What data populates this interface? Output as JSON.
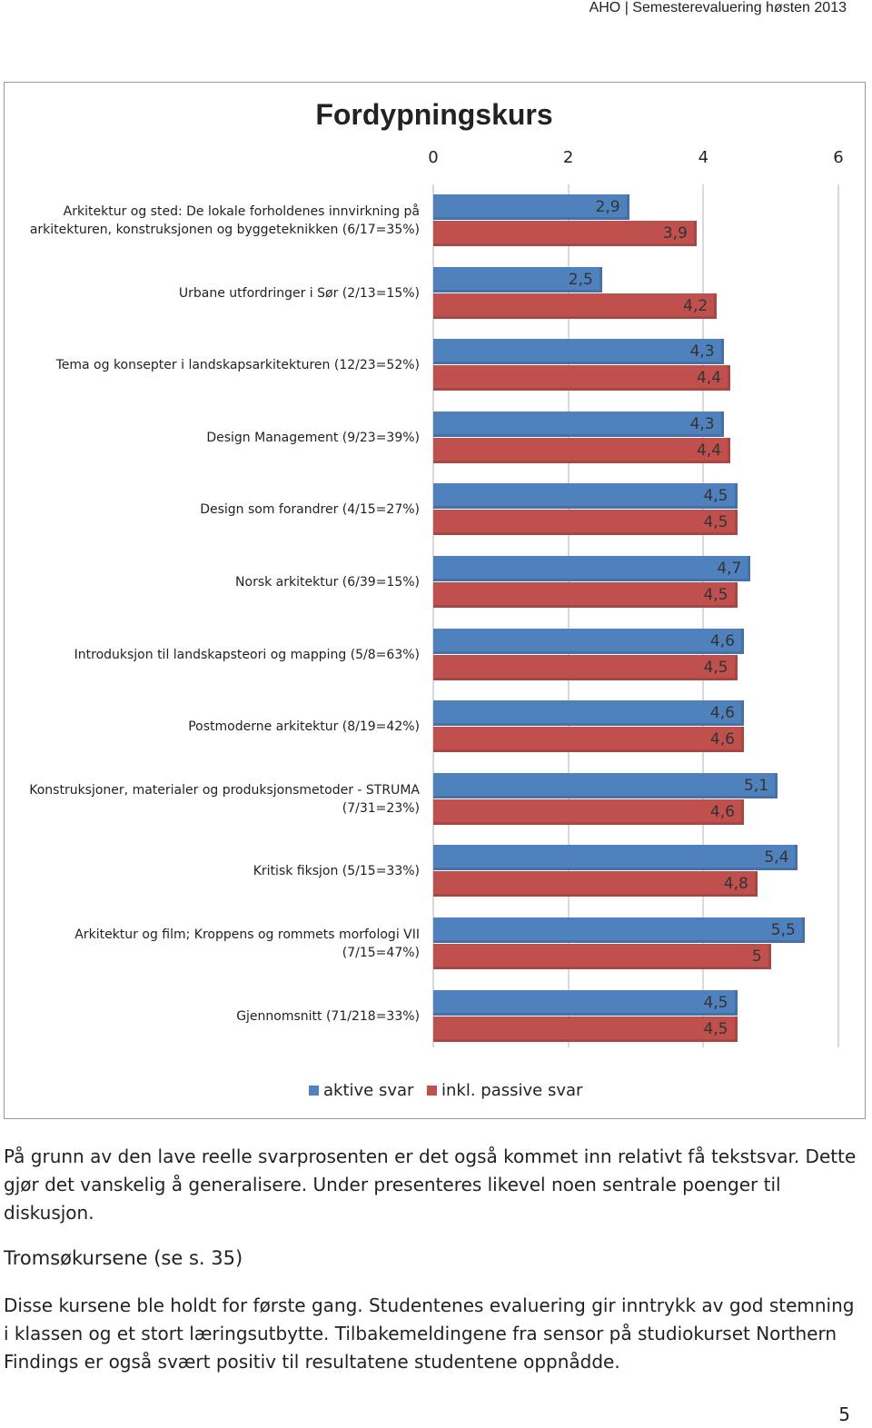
{
  "header": "AHO | Semesterevaluering høsten 2013",
  "chart_data": {
    "type": "bar",
    "orientation": "horizontal",
    "title": "Fordypningskurs",
    "categories": [
      "Arkitektur og sted: De lokale forholdenes innvirkning på arkitekturen, konstruksjonen og byggeteknikken (6/17=35%)",
      "Urbane utfordringer i Sør (2/13=15%)",
      "Tema og konsepter i landskapsarkitekturen (12/23=52%)",
      "Design Management (9/23=39%)",
      "Design som forandrer (4/15=27%)",
      "Norsk arkitektur (6/39=15%)",
      "Introduksjon til landskapsteori og mapping (5/8=63%)",
      "Postmoderne arkitektur (8/19=42%)",
      "Konstruksjoner, materialer og produksjonsmetoder - STRUMA (7/31=23%)",
      "Kritisk fiksjon (5/15=33%)",
      "Arkitektur og film; Kroppens og rommets morfologi VII (7/15=47%)",
      "Gjennomsnitt (71/218=33%)"
    ],
    "series": [
      {
        "name": "aktive svar",
        "color": "#4f81bd",
        "values": [
          2.9,
          2.5,
          4.3,
          4.3,
          4.5,
          4.7,
          4.6,
          4.6,
          5.1,
          5.4,
          5.5,
          4.5
        ],
        "value_labels": [
          "2,9",
          "2,5",
          "4,3",
          "4,3",
          "4,5",
          "4,7",
          "4,6",
          "4,6",
          "5,1",
          "5,4",
          "5,5",
          "4,5"
        ]
      },
      {
        "name": "inkl. passive svar",
        "color": "#c0504d",
        "values": [
          3.9,
          4.2,
          4.4,
          4.4,
          4.5,
          4.5,
          4.5,
          4.6,
          4.6,
          4.8,
          5,
          4.5
        ],
        "value_labels": [
          "3,9",
          "4,2",
          "4,4",
          "4,4",
          "4,5",
          "4,5",
          "4,5",
          "4,6",
          "4,6",
          "4,8",
          "5",
          "4,5"
        ]
      }
    ],
    "xlim": [
      0,
      6
    ],
    "xticks": [
      0,
      2,
      4,
      6
    ],
    "grid": true
  },
  "body": {
    "paragraph_1": "På grunn av den lave reelle svarprosenten er det også kommet inn relativt få tekstsvar. Dette gjør det vanskelig å generalisere. Under presenteres likevel noen sentrale poenger til diskusjon.",
    "heading": "Tromsøkursene (se s. 35)",
    "paragraph_2": "Disse kursene ble holdt for første gang. Studentenes evaluering gir inntrykk av god stemning i klassen og et stort læringsutbytte. Tilbakemeldingene fra sensor på studiokurset Northern Findings er også svært positiv til resultatene studentene oppnådde."
  },
  "page_number": 5
}
